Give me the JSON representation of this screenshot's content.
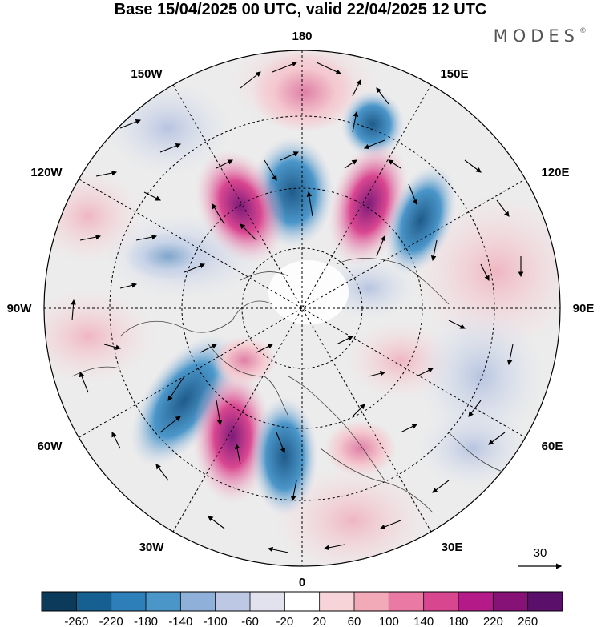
{
  "title": "Base 15/04/2025 00 UTC, valid 22/04/2025 12 UTC",
  "logo": "MODES",
  "logo_mark": "©",
  "map": {
    "longitude_labels": {
      "top": "180",
      "bottom": "0",
      "left": "90W",
      "right": "90E",
      "upper_left": "150W",
      "upper_right": "150E",
      "mid_upper_left": "120W",
      "mid_upper_right": "120E",
      "mid_lower_left": "60W",
      "mid_lower_right": "60E",
      "lower_left": "30W",
      "lower_right": "30E"
    },
    "projection": "north polar stereographic",
    "field_colors": {
      "strong_negative": "#1f5b8a",
      "negative": "#7fa6cc",
      "weak_negative": "#c9d4e8",
      "neutral": "#eeeeee",
      "weak_positive": "#f4c9cf",
      "positive": "#e07fa6",
      "strong_positive": "#8b1a7a"
    }
  },
  "vector_reference": {
    "label": "30"
  },
  "colorbar": {
    "ticks": [
      "-260",
      "-220",
      "-180",
      "-140",
      "-100",
      "-60",
      "-20",
      "20",
      "60",
      "100",
      "140",
      "180",
      "220",
      "260"
    ],
    "colors": [
      "#0c3a5a",
      "#165f91",
      "#2c7fb8",
      "#4b96c9",
      "#8fb0d8",
      "#bcc8e4",
      "#e2e2ef",
      "#ffffff",
      "#f7d4d8",
      "#f2a9b8",
      "#ea7aa4",
      "#d94690",
      "#b51b88",
      "#861278",
      "#5a0f6a"
    ]
  }
}
